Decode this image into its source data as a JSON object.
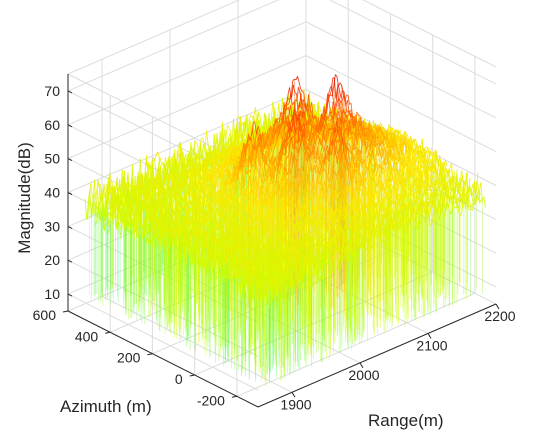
{
  "chart_data": {
    "type": "surface-3d",
    "title": "",
    "axes": {
      "x": {
        "label": "Range(m)",
        "range": [
          1850,
          2200
        ],
        "ticks": [
          1900,
          2000,
          2100,
          2200
        ]
      },
      "y": {
        "label": "Azimuth (m)",
        "range": [
          -300,
          600
        ],
        "ticks": [
          -200,
          0,
          200,
          400,
          600
        ]
      },
      "z": {
        "label": "Magnitude(dB)",
        "range": [
          5,
          75
        ],
        "ticks": [
          10,
          20,
          30,
          40,
          50,
          60,
          70
        ]
      }
    },
    "grid": true,
    "colormap": [
      "#00d2ff",
      "#00f0b4",
      "#c8ff00",
      "#ffe600",
      "#ff8c00",
      "#ff3c00",
      "#c80000"
    ],
    "background_level_db": [
      20,
      45
    ],
    "peaks": [
      {
        "range": 2000,
        "azimuth": 200,
        "magnitude": 62
      },
      {
        "range": 2060,
        "azimuth": 200,
        "magnitude": 70
      },
      {
        "range": 2030,
        "azimuth": 100,
        "magnitude": 66
      },
      {
        "range": 2090,
        "azimuth": 100,
        "magnitude": 71
      },
      {
        "range": 2060,
        "azimuth": 0,
        "magnitude": 63
      }
    ]
  }
}
